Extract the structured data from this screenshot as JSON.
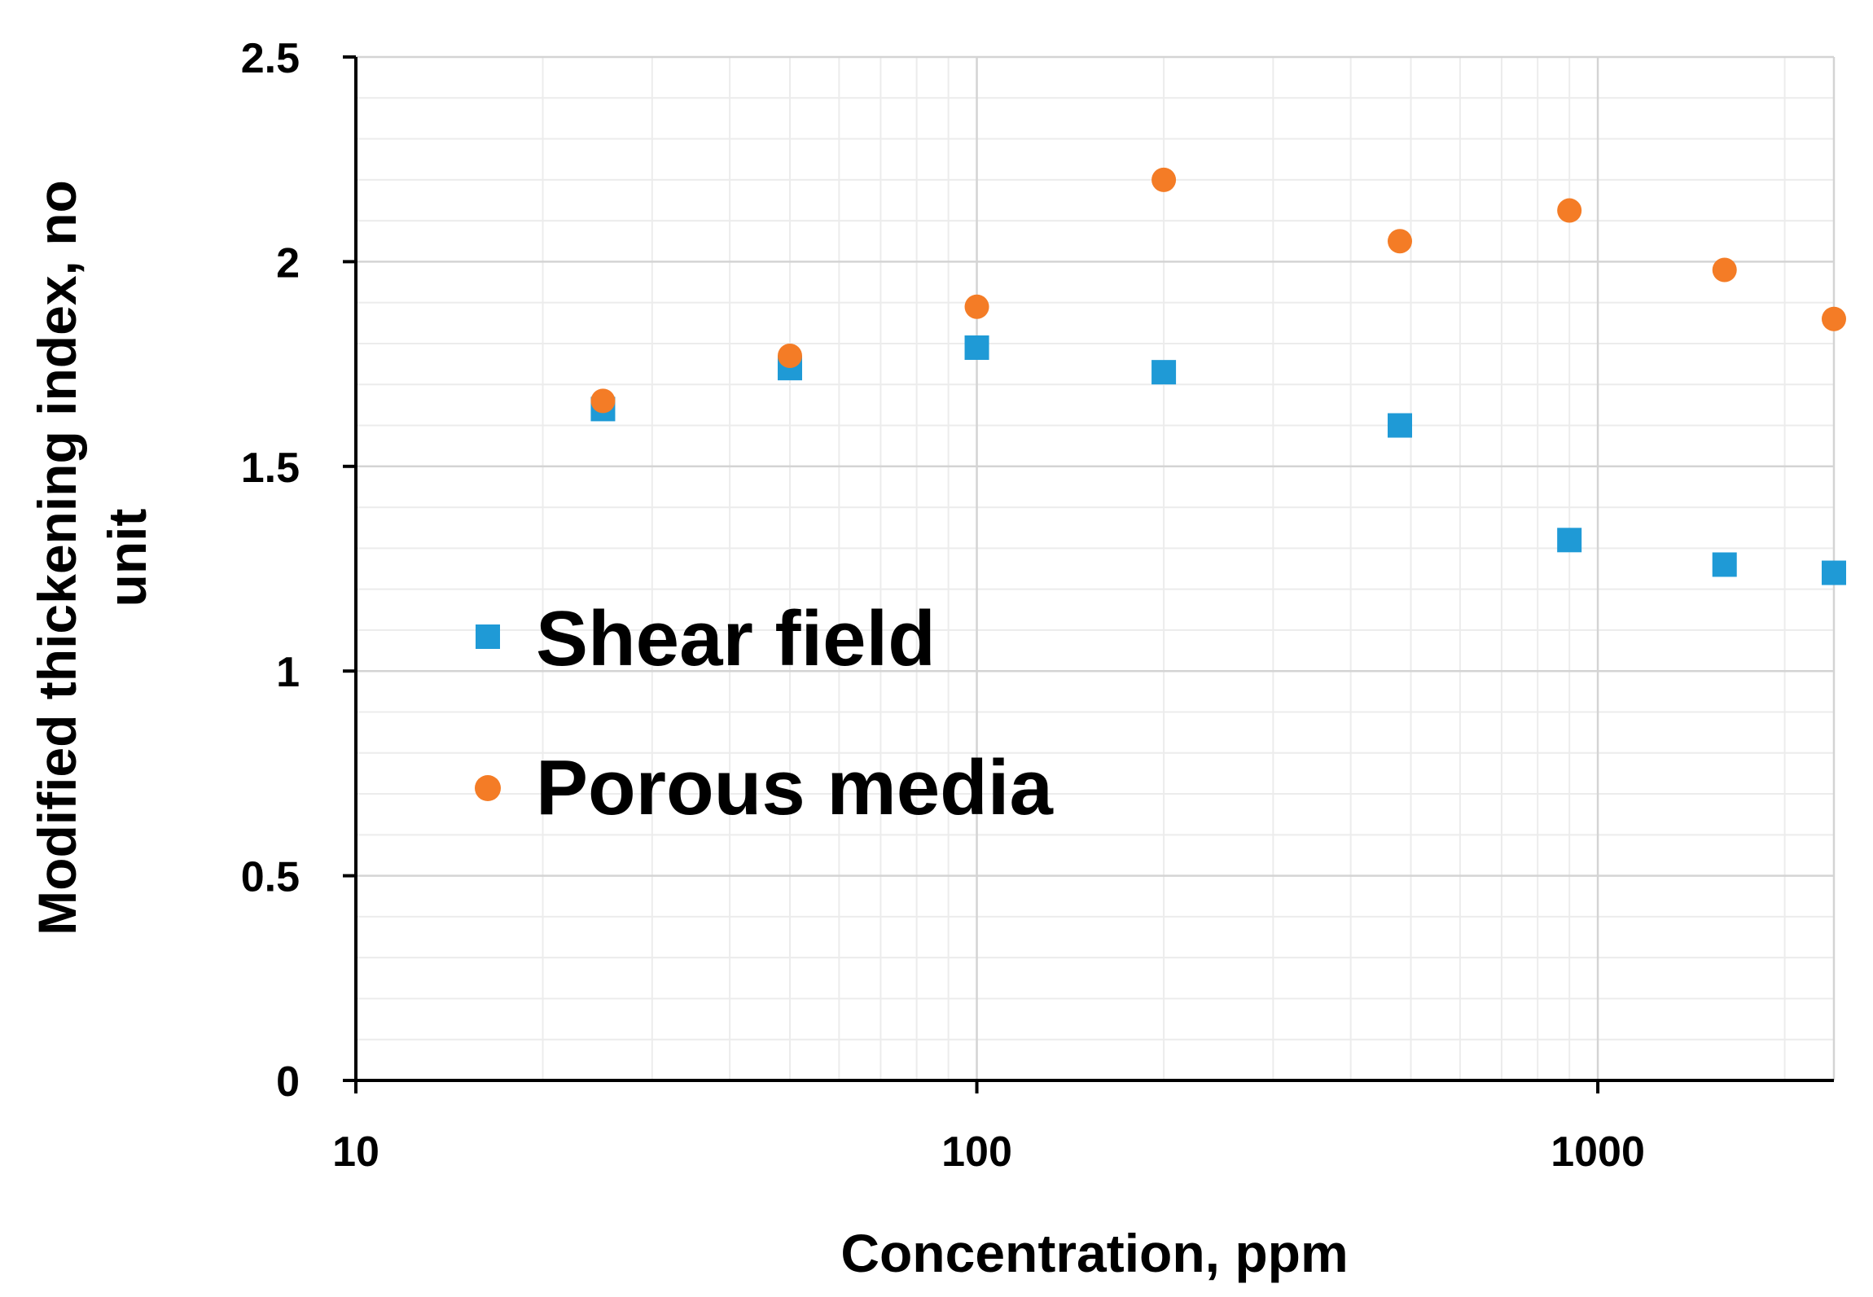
{
  "chart_data": {
    "type": "scatter",
    "title": "",
    "xlabel": "Concentration, ppm",
    "ylabel_line1": "Modified thickening index, no",
    "ylabel_line2": "unit",
    "xscale": "log",
    "xlim": [
      10,
      2400
    ],
    "ylim": [
      0,
      2.5
    ],
    "grid": true,
    "legend_position": "center-left",
    "x_ticks": [
      {
        "value": 10,
        "label": "10"
      },
      {
        "value": 100,
        "label": "100"
      },
      {
        "value": 1000,
        "label": "1000"
      }
    ],
    "y_ticks": [
      {
        "value": 0,
        "label": "0"
      },
      {
        "value": 0.5,
        "label": "0.5"
      },
      {
        "value": 1,
        "label": "1"
      },
      {
        "value": 1.5,
        "label": "1.5"
      },
      {
        "value": 2,
        "label": "2"
      },
      {
        "value": 2.5,
        "label": "2.5"
      }
    ],
    "series": [
      {
        "name": "Shear field",
        "marker": "square",
        "color": "#1f9ad6",
        "points": [
          {
            "x": 25,
            "y": 1.64
          },
          {
            "x": 50,
            "y": 1.74
          },
          {
            "x": 100,
            "y": 1.79
          },
          {
            "x": 200,
            "y": 1.73
          },
          {
            "x": 480,
            "y": 1.6
          },
          {
            "x": 900,
            "y": 1.32
          },
          {
            "x": 1600,
            "y": 1.26
          },
          {
            "x": 2400,
            "y": 1.24
          }
        ]
      },
      {
        "name": "Porous media",
        "marker": "circle",
        "color": "#f47c26",
        "points": [
          {
            "x": 25,
            "y": 1.66
          },
          {
            "x": 50,
            "y": 1.77
          },
          {
            "x": 100,
            "y": 1.89
          },
          {
            "x": 200,
            "y": 2.2
          },
          {
            "x": 480,
            "y": 2.05
          },
          {
            "x": 900,
            "y": 2.125
          },
          {
            "x": 1600,
            "y": 1.98
          },
          {
            "x": 2400,
            "y": 1.86
          }
        ]
      }
    ]
  }
}
